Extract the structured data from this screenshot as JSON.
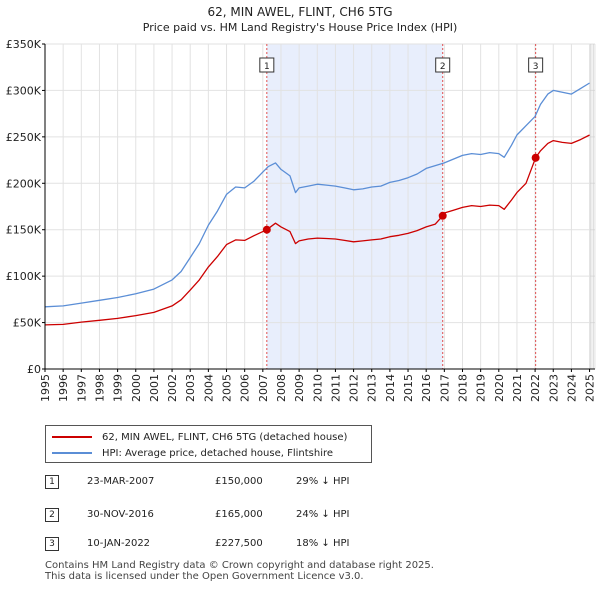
{
  "chart_data": {
    "type": "line",
    "title": "62, MIN AWEL, FLINT, CH6 5TG",
    "subtitle": "Price paid vs. HM Land Registry's House Price Index (HPI)",
    "xlabel": "",
    "ylabel": "",
    "xlim": [
      1995,
      2025.3
    ],
    "ylim": [
      0,
      350000
    ],
    "y_ticks": [
      0,
      50000,
      100000,
      150000,
      200000,
      250000,
      300000,
      350000
    ],
    "y_tick_labels": [
      "£0",
      "£50K",
      "£100K",
      "£150K",
      "£200K",
      "£250K",
      "£300K",
      "£350K"
    ],
    "x_ticks": [
      1995,
      1996,
      1997,
      1998,
      1999,
      2000,
      2001,
      2002,
      2003,
      2004,
      2005,
      2006,
      2007,
      2008,
      2009,
      2010,
      2011,
      2012,
      2013,
      2014,
      2015,
      2016,
      2017,
      2018,
      2019,
      2020,
      2021,
      2022,
      2023,
      2024,
      2025
    ],
    "grid": true,
    "series": [
      {
        "name": "HPI: Average price, detached house, Flintshire",
        "color": "#5b8ed6",
        "x": [
          1995,
          1996,
          1997,
          1998,
          1999,
          2000,
          2001,
          2002,
          2002.5,
          2003,
          2003.5,
          2004,
          2004.5,
          2005,
          2005.5,
          2006,
          2006.5,
          2007,
          2007.3,
          2007.7,
          2008,
          2008.5,
          2008.8,
          2009,
          2009.5,
          2010,
          2010.5,
          2011,
          2011.5,
          2012,
          2012.5,
          2013,
          2013.5,
          2014,
          2014.5,
          2015,
          2015.5,
          2016,
          2016.5,
          2017,
          2017.5,
          2018,
          2018.5,
          2019,
          2019.5,
          2020,
          2020.3,
          2020.7,
          2021,
          2021.5,
          2022,
          2022.3,
          2022.7,
          2023,
          2023.5,
          2024,
          2024.5,
          2025
        ],
        "y": [
          67000,
          68000,
          71000,
          74000,
          77000,
          81000,
          86000,
          96000,
          105000,
          120000,
          135000,
          155000,
          170000,
          188000,
          196000,
          195000,
          202000,
          212000,
          218000,
          222000,
          215000,
          208000,
          190000,
          195000,
          197000,
          199000,
          198000,
          197000,
          195000,
          193000,
          194000,
          196000,
          197000,
          201000,
          203000,
          206000,
          210000,
          216000,
          219000,
          222000,
          226000,
          230000,
          232000,
          231000,
          233000,
          232000,
          228000,
          241000,
          252000,
          262000,
          272000,
          285000,
          296000,
          300000,
          298000,
          296000,
          302000,
          308000
        ]
      },
      {
        "name": "62, MIN AWEL, FLINT, CH6 5TG (detached house)",
        "color": "#cc0000",
        "x": [
          1995,
          1996,
          1997,
          1998,
          1999,
          2000,
          2001,
          2002,
          2002.5,
          2003,
          2003.5,
          2004,
          2004.5,
          2005,
          2005.5,
          2006,
          2006.5,
          2007.22,
          2007.7,
          2008,
          2008.5,
          2008.8,
          2009,
          2009.5,
          2010,
          2010.5,
          2011,
          2011.5,
          2012,
          2012.5,
          2013,
          2013.5,
          2014,
          2014.5,
          2015,
          2015.5,
          2016,
          2016.5,
          2016.91,
          2017,
          2017.5,
          2018,
          2018.5,
          2019,
          2019.5,
          2020,
          2020.3,
          2020.7,
          2021,
          2021.5,
          2022.03,
          2022.3,
          2022.7,
          2023,
          2023.5,
          2024,
          2024.5,
          2025
        ],
        "y": [
          47500,
          48000,
          50500,
          52500,
          54500,
          57500,
          61000,
          68000,
          74500,
          85000,
          96000,
          110000,
          121000,
          134000,
          139000,
          138500,
          143500,
          150000,
          157000,
          153000,
          148000,
          135000,
          138000,
          140000,
          141000,
          140500,
          140000,
          138500,
          137000,
          138000,
          139000,
          140000,
          142500,
          144000,
          146000,
          149000,
          153000,
          156000,
          165000,
          168000,
          171000,
          174000,
          176000,
          175000,
          176500,
          176000,
          172000,
          182000,
          190000,
          200000,
          227500,
          235000,
          243000,
          246000,
          244000,
          243000,
          247000,
          252000
        ]
      }
    ],
    "transactions": [
      {
        "label": "1",
        "date": "23-MAR-2007",
        "x": 2007.22,
        "price": 150000,
        "price_text": "£150,000",
        "hpi_text": "29% ↓ HPI"
      },
      {
        "label": "2",
        "date": "30-NOV-2016",
        "x": 2016.91,
        "price": 165000,
        "price_text": "£165,000",
        "hpi_text": "24% ↓ HPI"
      },
      {
        "label": "3",
        "date": "10-JAN-2022",
        "x": 2022.03,
        "price": 227500,
        "price_text": "£227,500",
        "hpi_text": "18% ↓ HPI"
      }
    ],
    "shaded_ranges": [
      [
        2007.22,
        2016.91
      ]
    ],
    "shade_color": "#e8eefc",
    "dashed_color": "#e05050"
  },
  "legend": {
    "property_label": "62, MIN AWEL, FLINT, CH6 5TG (detached house)",
    "hpi_label": "HPI: Average price, detached house, Flintshire"
  },
  "footer": {
    "line1": "Contains HM Land Registry data © Crown copyright and database right 2025.",
    "line2": "This data is licensed under the Open Government Licence v3.0."
  }
}
